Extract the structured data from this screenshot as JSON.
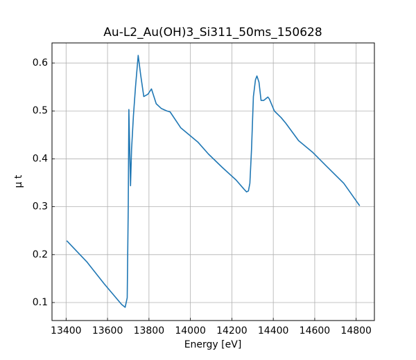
{
  "chart_data": {
    "type": "line",
    "title": "Au-L2_Au(OH)3_Si311_50ms_150628",
    "x_label": "Energy [eV]",
    "y_label": "μ t",
    "x": [
      13403,
      13500,
      13584,
      13668,
      13685,
      13695,
      13700,
      13703,
      13708,
      13711,
      13716,
      13725,
      13735,
      13748,
      13760,
      13775,
      13795,
      13812,
      13835,
      13860,
      13886,
      13902,
      13953,
      14036,
      14087,
      14154,
      14220,
      14260,
      14271,
      14280,
      14287,
      14295,
      14304,
      14314,
      14321,
      14331,
      14341,
      14354,
      14374,
      14381,
      14405,
      14438,
      14461,
      14522,
      14589,
      14656,
      14740,
      14817
    ],
    "series": [
      {
        "name": "Au-L2",
        "color": "#1f77b4",
        "values": [
          0.229,
          0.185,
          0.139,
          0.096,
          0.09,
          0.11,
          0.3,
          0.503,
          0.4,
          0.344,
          0.42,
          0.49,
          0.55,
          0.616,
          0.575,
          0.53,
          0.535,
          0.546,
          0.515,
          0.505,
          0.5,
          0.498,
          0.465,
          0.435,
          0.41,
          0.382,
          0.356,
          0.336,
          0.331,
          0.333,
          0.349,
          0.42,
          0.53,
          0.565,
          0.573,
          0.56,
          0.522,
          0.522,
          0.529,
          0.525,
          0.5,
          0.486,
          0.474,
          0.438,
          0.414,
          0.385,
          0.349,
          0.302
        ]
      }
    ],
    "xlim": [
      13332,
      14888
    ],
    "ylim": [
      0.0624,
      0.642
    ],
    "xticks": [
      13400,
      13600,
      13800,
      14000,
      14200,
      14400,
      14600,
      14800
    ],
    "yticks": [
      0.1,
      0.2,
      0.3,
      0.4,
      0.5,
      0.6
    ],
    "grid": true
  }
}
